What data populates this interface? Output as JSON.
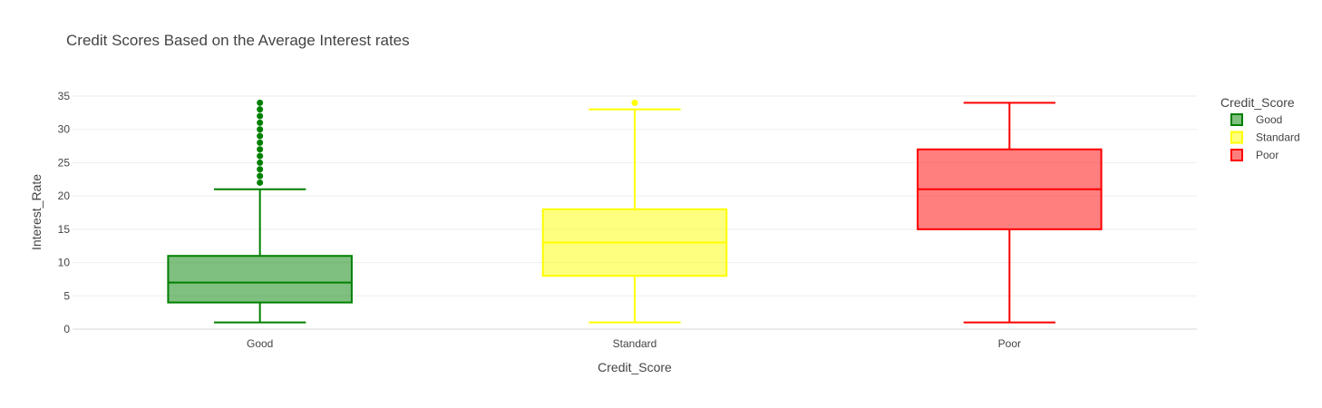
{
  "chart_data": {
    "type": "box",
    "title": "Credit Scores Based on the Average Interest rates",
    "xlabel": "Credit_Score",
    "ylabel": "Interest_Rate",
    "ylim": [
      0,
      35
    ],
    "yticks": [
      0,
      5,
      10,
      15,
      20,
      25,
      30,
      35
    ],
    "grid": true,
    "legend": {
      "title": "Credit_Score",
      "placement": "top-right",
      "entries": [
        "Good",
        "Standard",
        "Poor"
      ]
    },
    "categories": [
      "Good",
      "Standard",
      "Poor"
    ],
    "series": [
      {
        "name": "Good",
        "color": "#008000",
        "fill": "rgba(0,128,0,0.5)",
        "min": 1,
        "q1": 4,
        "median": 7,
        "q3": 11,
        "max": 21,
        "outliers": [
          22,
          23,
          24,
          25,
          26,
          27,
          28,
          29,
          30,
          31,
          32,
          33,
          34
        ]
      },
      {
        "name": "Standard",
        "color": "#ffff00",
        "fill": "rgba(255,255,0,0.5)",
        "min": 1,
        "q1": 8,
        "median": 13,
        "q3": 18,
        "max": 33,
        "outliers": [
          34
        ]
      },
      {
        "name": "Poor",
        "color": "#ff0000",
        "fill": "rgba(255,0,0,0.5)",
        "min": 1,
        "q1": 15,
        "median": 21,
        "q3": 27,
        "max": 34,
        "outliers": []
      }
    ]
  }
}
